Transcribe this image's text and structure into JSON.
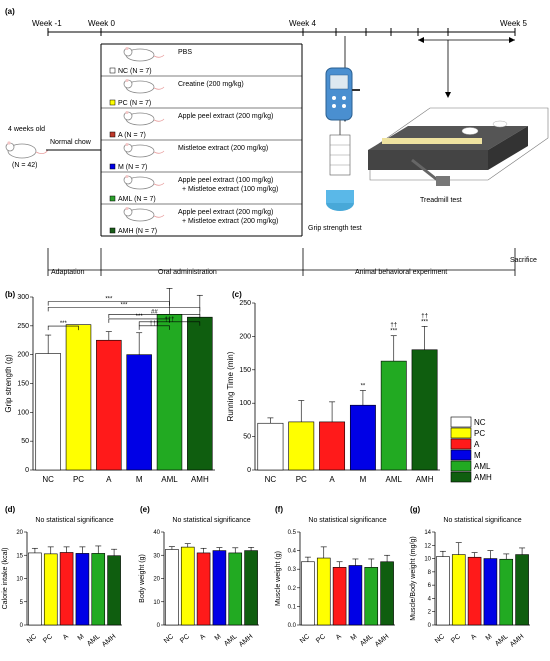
{
  "panel_a": {
    "label": "(a)",
    "timeline": {
      "weeks": [
        "Week -1",
        "Week 0",
        "Week 4",
        "Week 5"
      ]
    },
    "start": {
      "age": "4 weeks old",
      "n": "(N = 42)",
      "diet": "Normal chow"
    },
    "groups": [
      {
        "treatment": "PBS",
        "legend": "NC (N = 7)",
        "color": "#ffffff"
      },
      {
        "treatment": "Creatine (200 mg/kg)",
        "legend": "PC (N = 7)",
        "color": "#ffff00"
      },
      {
        "treatment": "Apple peel extract (200 mg/kg)",
        "legend": "A (N = 7)",
        "color": "#c0392b"
      },
      {
        "treatment": "Mistletoe extract (200 mg/kg)",
        "legend": "M (N = 7)",
        "color": "#0000e6"
      },
      {
        "treatment": "Apple peel extract (100 mg/kg)",
        "treatment2": "+ Mistletoe extract (100 mg/kg)",
        "legend": "AML (N = 7)",
        "color": "#2ca02c"
      },
      {
        "treatment": "Apple peel extract (200 mg/kg)",
        "treatment2": "+ Mistletoe extract (200 mg/kg)",
        "legend": "AMH (N = 7)",
        "color": "#1a5e1a"
      }
    ],
    "tests": {
      "grip": "Grip strength test",
      "treadmill": "Treadmill test"
    },
    "phases": {
      "adaptation": "Adaptation",
      "oral": "Oral administration",
      "behavior": "Animal behavioral experiment",
      "sacrifice": "Sacrifice"
    }
  },
  "legend": [
    {
      "label": "NC",
      "color": "#ffffff"
    },
    {
      "label": "PC",
      "color": "#ffff00"
    },
    {
      "label": "A",
      "color": "#ff1a1a"
    },
    {
      "label": "M",
      "color": "#0000e6"
    },
    {
      "label": "AML",
      "color": "#22aa22"
    },
    {
      "label": "AMH",
      "color": "#0f5e0f"
    }
  ],
  "chart_data": [
    {
      "panel": "(b)",
      "type": "bar",
      "categories": [
        "NC",
        "PC",
        "A",
        "M",
        "AML",
        "AMH"
      ],
      "values": [
        202,
        252,
        225,
        200,
        270,
        265
      ],
      "errors": [
        32,
        0,
        15,
        38,
        45,
        38
      ],
      "ylabel": "Grip strength (g)",
      "ylim": [
        0,
        300
      ],
      "yticks": [
        "0",
        "50",
        "100",
        "150",
        "200",
        "250",
        "300"
      ],
      "comparisons": [
        {
          "from": 0,
          "to": 1,
          "label": "***"
        },
        {
          "from": 0,
          "to": 4,
          "label": "***"
        },
        {
          "from": 0,
          "to": 5,
          "label": "***"
        },
        {
          "from": 2,
          "to": 5,
          "label": "##"
        },
        {
          "from": 2,
          "to": 4,
          "label": "***"
        },
        {
          "from": 3,
          "to": 5,
          "label": "†††"
        },
        {
          "from": 3,
          "to": 4,
          "label": "†††"
        }
      ]
    },
    {
      "panel": "(c)",
      "type": "bar",
      "categories": [
        "NC",
        "PC",
        "A",
        "M",
        "AML",
        "AMH"
      ],
      "values": [
        70,
        72,
        72,
        97,
        163,
        180
      ],
      "errors": [
        8,
        32,
        30,
        22,
        38,
        35
      ],
      "marks": [
        "",
        "",
        "",
        "**",
        "†† ***",
        "†† ***"
      ],
      "ylabel": "Running Time (min)",
      "ylim": [
        0,
        250
      ],
      "yticks": [
        "0",
        "50",
        "100",
        "150",
        "200",
        "250"
      ]
    },
    {
      "panel": "(d)",
      "type": "bar",
      "categories": [
        "NC",
        "PC",
        "A",
        "M",
        "AML",
        "AMH"
      ],
      "values": [
        15.5,
        15.3,
        15.6,
        15.4,
        15.4,
        14.9
      ],
      "errors": [
        1.0,
        1.5,
        1.2,
        1.4,
        1.6,
        1.4
      ],
      "annotation": "No statistical significance",
      "ylabel": "Calorie intake (kcal)",
      "ylim": [
        0,
        20
      ],
      "yticks": [
        "0",
        "5",
        "10",
        "15",
        "20"
      ]
    },
    {
      "panel": "(e)",
      "type": "bar",
      "categories": [
        "NC",
        "PC",
        "A",
        "M",
        "AML",
        "AMH"
      ],
      "values": [
        32.5,
        33.5,
        31,
        32,
        31,
        32
      ],
      "errors": [
        1.2,
        1.5,
        2.0,
        1.3,
        2.2,
        1.4
      ],
      "annotation": "No statistical significance",
      "ylabel": "Body weight (g)",
      "ylim": [
        0,
        40
      ],
      "yticks": [
        "0",
        "10",
        "20",
        "30",
        "40"
      ]
    },
    {
      "panel": "(f)",
      "type": "bar",
      "categories": [
        "NC",
        "PC",
        "A",
        "M",
        "AML",
        "AMH"
      ],
      "values": [
        0.34,
        0.36,
        0.31,
        0.32,
        0.31,
        0.34
      ],
      "errors": [
        0.025,
        0.06,
        0.03,
        0.035,
        0.045,
        0.035
      ],
      "annotation": "No statistical significance",
      "ylabel": "Muscle weight (g)",
      "ylim": [
        0,
        0.5
      ],
      "yticks": [
        "0.0",
        "0.1",
        "0.2",
        "0.3",
        "0.4",
        "0.5"
      ]
    },
    {
      "panel": "(g)",
      "type": "bar",
      "categories": [
        "NC",
        "PC",
        "A",
        "M",
        "AML",
        "AMH"
      ],
      "values": [
        10.3,
        10.6,
        10.2,
        10.0,
        9.9,
        10.6
      ],
      "errors": [
        0.8,
        1.8,
        0.7,
        1.2,
        0.8,
        1.0
      ],
      "annotation": "No statistical significance",
      "ylabel": "Muscle/Body weight (mg/g)",
      "ylim": [
        0,
        14
      ],
      "yticks": [
        "0",
        "2",
        "4",
        "6",
        "8",
        "10",
        "12",
        "14"
      ]
    }
  ]
}
